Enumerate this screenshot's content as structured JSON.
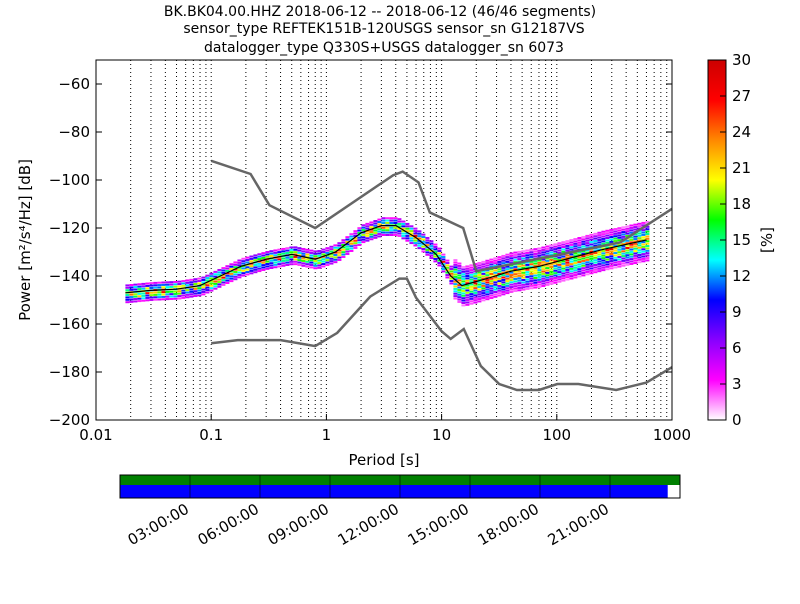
{
  "header": {
    "title_lines": [
      "BK.BK04.00.HHZ   2018-06-12 -- 2018-06-12  (46/46 segments)",
      "sensor_type REFTEK151B-120USGS sensor_sn G12187VS",
      "datalogger_type Q330S+USGS datalogger_sn 6073"
    ]
  },
  "chart_data": {
    "type": "heatmap",
    "xlabel": "Period [s]",
    "ylabel_prefix": "Power ",
    "ylabel_units": "[m²/s⁴/Hz] [dB]",
    "x_scale": "log",
    "xlim": [
      0.01,
      1000
    ],
    "ylim": [
      -200,
      -50
    ],
    "x_ticks": [
      0.01,
      0.1,
      1,
      10,
      100,
      1000
    ],
    "x_tick_labels": [
      "0.01",
      "0.1",
      "1",
      "10",
      "100",
      "1000"
    ],
    "y_ticks": [
      -200,
      -180,
      -160,
      -140,
      -120,
      -100,
      -80,
      -60
    ],
    "y_tick_labels": [
      "−200",
      "−180",
      "−160",
      "−140",
      "−120",
      "−100",
      "−80",
      "−60"
    ],
    "grid": "dotted vertical",
    "colorbar": {
      "label": "[%]",
      "range": [
        0,
        30
      ],
      "ticks": [
        0,
        3,
        6,
        9,
        12,
        15,
        18,
        21,
        24,
        27,
        30
      ],
      "colors": [
        "#ffffff",
        "#ff00ff",
        "#8800ff",
        "#0000ff",
        "#00ffff",
        "#00ff00",
        "#ffff00",
        "#ff8800",
        "#ff0000",
        "#cc0000"
      ]
    },
    "nhnm": [
      [
        0.1,
        -92
      ],
      [
        0.22,
        -97.5
      ],
      [
        0.32,
        -110.5
      ],
      [
        0.8,
        -120
      ],
      [
        3.8,
        -98
      ],
      [
        4.6,
        -96.5
      ],
      [
        6.3,
        -101
      ],
      [
        7.9,
        -113.5
      ],
      [
        15.4,
        -120
      ],
      [
        20,
        -138
      ],
      [
        354.8,
        -126
      ],
      [
        1000,
        -112
      ]
    ],
    "nlnm": [
      [
        0.1,
        -168
      ],
      [
        0.17,
        -166.7
      ],
      [
        0.4,
        -166.7
      ],
      [
        0.8,
        -169.2
      ],
      [
        1.24,
        -163.7
      ],
      [
        2.4,
        -148.6
      ],
      [
        4.3,
        -141.1
      ],
      [
        5,
        -141.1
      ],
      [
        6,
        -149
      ],
      [
        10,
        -163
      ],
      [
        12,
        -166.2
      ],
      [
        15.6,
        -162.1
      ],
      [
        21.9,
        -177.5
      ],
      [
        31.6,
        -185
      ],
      [
        45,
        -187.5
      ],
      [
        70,
        -187.5
      ],
      [
        101,
        -185
      ],
      [
        154,
        -185
      ],
      [
        328,
        -187.5
      ],
      [
        600,
        -184.4
      ],
      [
        1000,
        -178
      ]
    ],
    "mean_line": [
      [
        0.018,
        -147
      ],
      [
        0.03,
        -146
      ],
      [
        0.05,
        -145.5
      ],
      [
        0.08,
        -144
      ],
      [
        0.12,
        -140
      ],
      [
        0.18,
        -136
      ],
      [
        0.3,
        -133
      ],
      [
        0.5,
        -131
      ],
      [
        0.8,
        -133
      ],
      [
        1.2,
        -130
      ],
      [
        2,
        -122
      ],
      [
        3,
        -119
      ],
      [
        4,
        -119
      ],
      [
        6,
        -124
      ],
      [
        9,
        -131
      ],
      [
        12,
        -140
      ],
      [
        15,
        -144
      ],
      [
        25,
        -141
      ],
      [
        40,
        -138
      ],
      [
        70,
        -136
      ],
      [
        120,
        -133
      ],
      [
        250,
        -129
      ],
      [
        600,
        -125
      ]
    ]
  },
  "timeline": {
    "tick_labels": [
      "03:00:00",
      "06:00:00",
      "09:00:00",
      "12:00:00",
      "15:00:00",
      "18:00:00",
      "21:00:00"
    ],
    "data_coverage": 0.978,
    "colors": {
      "data": "#0000ff",
      "gaps": "#008000"
    }
  }
}
